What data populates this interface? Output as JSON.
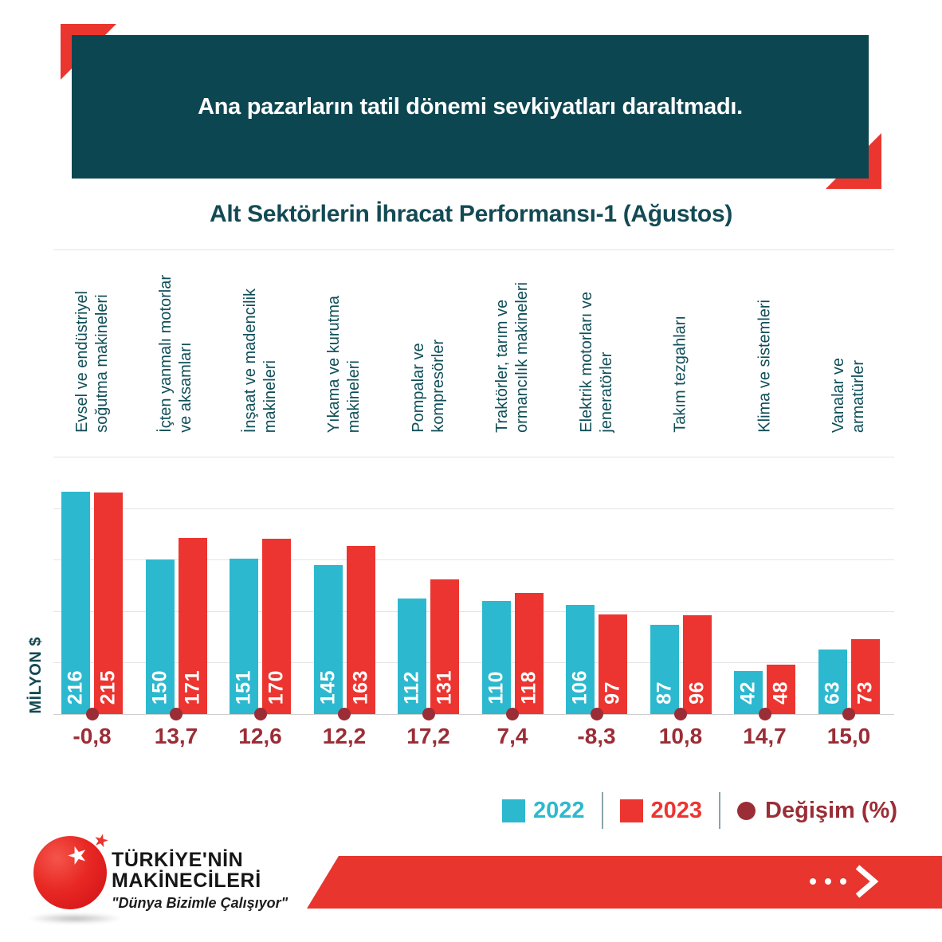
{
  "banner": {
    "text": "Ana pazarların tatil dönemi sevkiyatları daraltmadı.",
    "bg_color": "#0C4651",
    "accent_color": "#EA362E"
  },
  "chart_data": {
    "type": "bar",
    "title": "Alt Sektörlerin İhracat Performansı-1 (Ağustos)",
    "categories": [
      "Evsel ve endüstriyel\nsoğutma makineleri",
      "İçten yanmalı motorlar\nve aksamları",
      "İnşaat ve madencilik\nmakineleri",
      "Yıkama ve kurutma\nmakineleri",
      "Pompalar ve\nkompresörler",
      "Traktörler, tarım ve\normancılık makineleri",
      "Elektrik motorları ve\njeneratörler",
      "Takım tezgahları",
      "Klima ve sistemleri",
      "Vanalar ve\narmatürler"
    ],
    "series": [
      {
        "name": "2022",
        "color": "#2CB9CF",
        "values": [
          216,
          150,
          151,
          145,
          112,
          110,
          106,
          87,
          42,
          63
        ]
      },
      {
        "name": "2023",
        "color": "#EC3530",
        "values": [
          215,
          171,
          170,
          163,
          131,
          118,
          97,
          96,
          48,
          73
        ]
      }
    ],
    "change_series": {
      "name": "Değişim (%)",
      "color": "#9B2D36",
      "values": [
        -0.8,
        13.7,
        12.6,
        12.2,
        17.2,
        7.4,
        -8.3,
        10.8,
        14.7,
        15.0
      ],
      "labels": [
        "-0,8",
        "13,7",
        "12,6",
        "12,2",
        "17,2",
        "7,4",
        "-8,3",
        "10,8",
        "14,7",
        "15,0"
      ]
    },
    "ylabel": "MİLYON $",
    "ylim": [
      0,
      250
    ],
    "grid_step": 50,
    "grid": true,
    "legend_position": "bottom-right"
  },
  "footer": {
    "logo_line1": "TÜRKİYE'NİN",
    "logo_line2": "MAKİNECİLERİ",
    "tagline": "\"Dünya Bizimle Çalışıyor\"",
    "banner_color": "#E8352E",
    "arrow_icon": "dots-chevron-right"
  }
}
